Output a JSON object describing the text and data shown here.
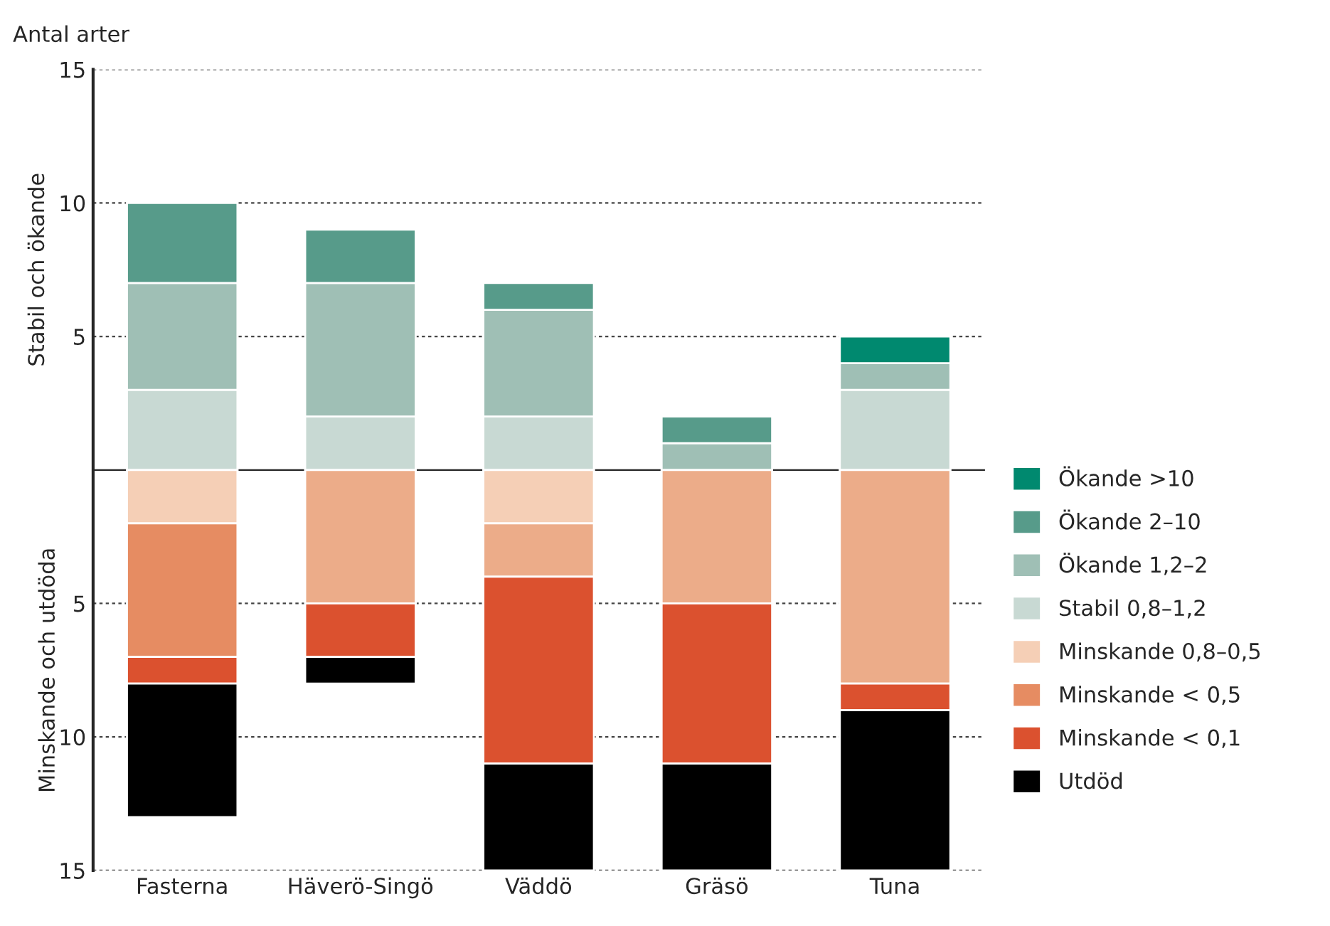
{
  "chart_data": {
    "type": "bar",
    "title": "Antal arter",
    "ylabel": "Stabil och ökande",
    "annotations": [
      "Minskande och utdöda"
    ],
    "categories": [
      "Fasterna",
      "Häverö-Singö",
      "Väddö",
      "Gräsö",
      "Tuna"
    ],
    "stacked": true,
    "series": [
      {
        "name": "Stabil 0,8–1,2",
        "color": "#c8d9d3",
        "values": [
          3,
          2,
          2,
          0,
          3
        ]
      },
      {
        "name": "Ökande 1,2–2",
        "color": "#9fbfb5",
        "values": [
          4,
          5,
          4,
          1,
          1
        ]
      },
      {
        "name": "Ökande 2–10",
        "color": "#579b8a",
        "values": [
          3,
          2,
          1,
          1,
          0
        ]
      },
      {
        "name": "Ökande >10",
        "color": "#00896f",
        "values": [
          0,
          0,
          0,
          0,
          1
        ]
      },
      {
        "name": "Minskande 0,8–0,5",
        "color": "#f5cfb6",
        "values": [
          -2,
          0,
          -2,
          0,
          0
        ]
      },
      {
        "name": "Minskande < 0,5",
        "color": "#e68c62",
        "colors": [
          "#e68c62",
          "#ecac89",
          "#ecac89",
          "#ecac89",
          "#ecac89"
        ],
        "values": [
          -5,
          -5,
          -2,
          -5,
          -8
        ]
      },
      {
        "name": "Minskande < 0,1",
        "color": "#db512f",
        "values": [
          -1,
          -2,
          -7,
          -6,
          -1
        ]
      },
      {
        "name": "Utdöd",
        "color": "#000000",
        "values": [
          -5,
          -1,
          -4,
          -4,
          -6
        ]
      }
    ],
    "ylim": [
      -15,
      15
    ],
    "yticks": [
      {
        "value": -15,
        "label": "15"
      },
      {
        "value": -10,
        "label": "10"
      },
      {
        "value": -5,
        "label": "5"
      },
      {
        "value": 5,
        "label": "5"
      },
      {
        "value": 10,
        "label": "10"
      },
      15
    ],
    "grid": "y",
    "legend": "right"
  }
}
